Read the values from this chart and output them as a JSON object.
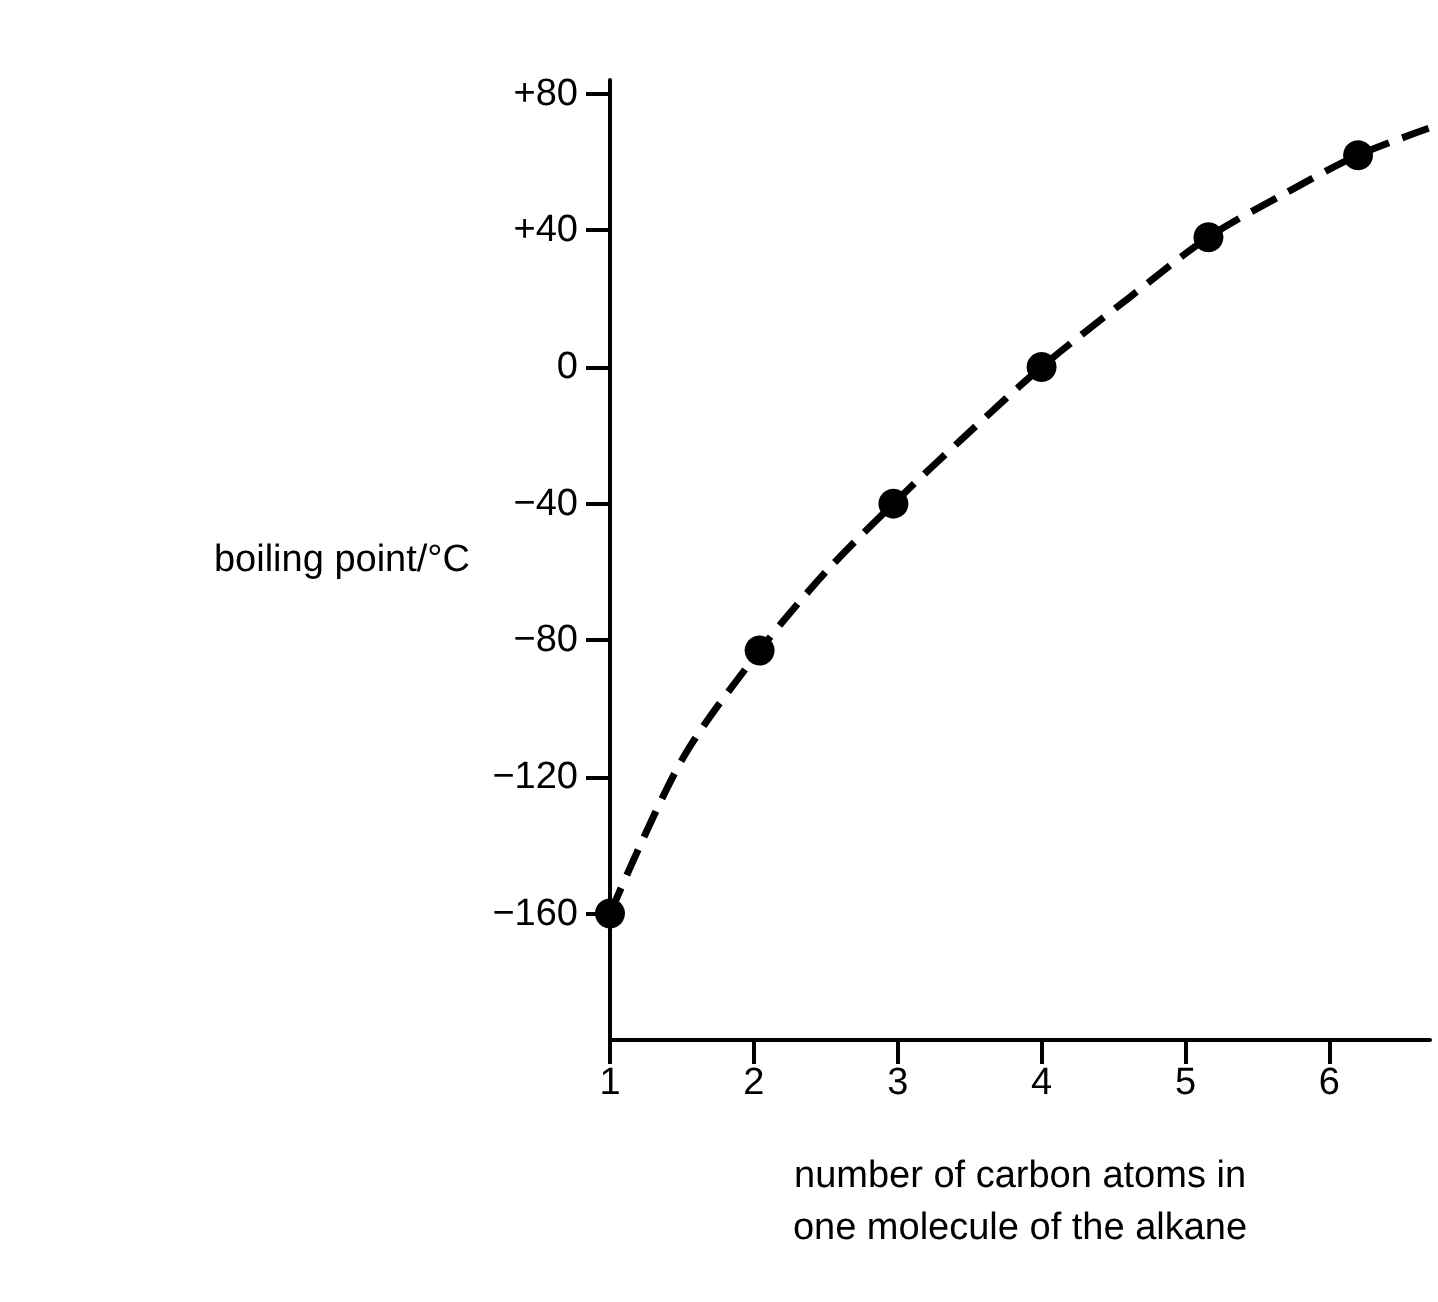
{
  "chart_data": {
    "type": "scatter",
    "xlabel": "number of carbon atoms in\none molecule of the alkane",
    "ylabel": "boiling point/°C",
    "x": [
      1,
      2.04,
      2.97,
      4,
      5.16,
      6.2
    ],
    "series": [
      {
        "color": "#000000",
        "values": [
          -160,
          -83,
          -40,
          0,
          38,
          62
        ],
        "marker": "circle"
      },
      {
        "type": "line",
        "color": "#000000",
        "line_style": "dashed",
        "marker": "none",
        "x": [
          1,
          1.5,
          2.04,
          2.5,
          2.97,
          3.5,
          4,
          4.6,
          5.16,
          5.7,
          6.2,
          6.7
        ],
        "values": [
          -160,
          -115,
          -83,
          -60,
          -40,
          -19,
          0,
          20,
          38,
          51,
          62,
          70
        ]
      }
    ],
    "xlim": [
      1,
      6.7
    ],
    "xticks": [
      1,
      2,
      3,
      4,
      5,
      6
    ],
    "ylim": [
      -197,
      84
    ],
    "yticks": [
      {
        "value": 80,
        "label": "+80"
      },
      {
        "value": 40,
        "label": "+40"
      },
      0,
      {
        "value": -40,
        "label": "−40"
      },
      {
        "value": -80,
        "label": "−80"
      },
      {
        "value": -120,
        "label": "−120"
      },
      {
        "value": -160,
        "label": "−160"
      }
    ],
    "grid": false
  }
}
